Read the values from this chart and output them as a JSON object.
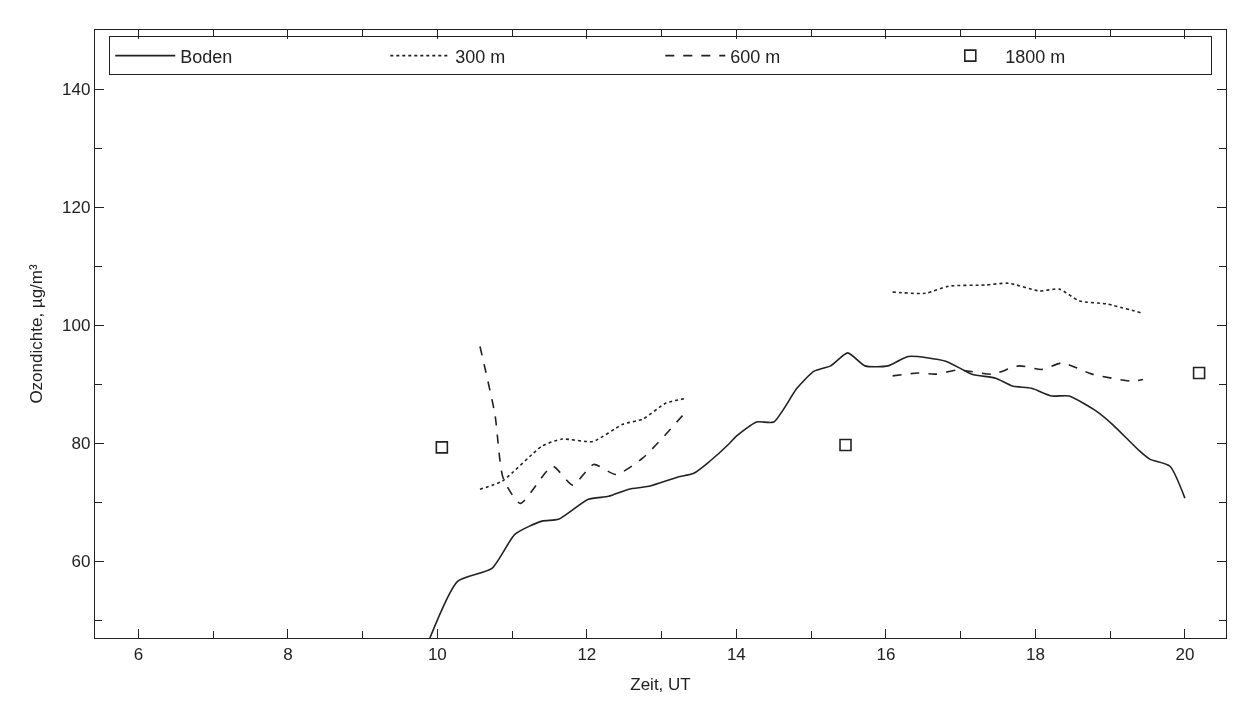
{
  "chart_data": {
    "type": "line",
    "xlabel": "Zeit, UT",
    "ylabel": "Ozondichte, µg/m³",
    "xlim": [
      5.42,
      20.55
    ],
    "ylim": [
      47,
      150
    ],
    "xticks": [
      6,
      {
        "value": 7,
        "label": null
      },
      8,
      {
        "value": 9,
        "label": null
      },
      10,
      {
        "value": 11,
        "label": null
      },
      12,
      {
        "value": 13,
        "label": null
      },
      14,
      {
        "value": 15,
        "label": null
      },
      16,
      {
        "value": 17,
        "label": null
      },
      18,
      {
        "value": 19,
        "label": null
      },
      20
    ],
    "yticks": [
      {
        "value": 50,
        "label": null
      },
      60,
      {
        "value": 70,
        "label": null
      },
      80,
      {
        "value": 90,
        "label": null
      },
      100,
      {
        "value": 110,
        "label": null
      },
      120,
      {
        "value": 130,
        "label": null
      },
      140
    ],
    "legend": "top",
    "series": [
      {
        "name": "Boden",
        "color": "#222222",
        "line_style": "solid",
        "marker": "none",
        "x": [
          9.9,
          10.27,
          10.73,
          11.04,
          11.4,
          11.62,
          12.02,
          12.29,
          12.56,
          12.83,
          13.2,
          13.43,
          13.64,
          13.91,
          14.0,
          14.27,
          14.5,
          14.81,
          15.04,
          15.26,
          15.49,
          15.72,
          16.03,
          16.3,
          16.8,
          17.15,
          17.47,
          17.69,
          17.95,
          18.22,
          18.45,
          18.82,
          19.03,
          19.4,
          19.53,
          19.8,
          20.0
        ],
        "values": [
          47,
          56.6,
          58.8,
          64.6,
          66.8,
          67.1,
          70.5,
          71.0,
          72.2,
          72.7,
          74.2,
          74.9,
          76.9,
          80.0,
          81.2,
          83.6,
          83.6,
          89.3,
          92.2,
          93.1,
          95.3,
          93.1,
          93.1,
          94.7,
          93.9,
          91.7,
          91.0,
          89.7,
          89.3,
          88.0,
          88.0,
          85.4,
          83.2,
          78.6,
          77.3,
          76.1,
          70.7
        ]
      },
      {
        "name": "300 m",
        "color": "#222222",
        "line_style": "dotted",
        "marker": "none",
        "x": [
          10.57,
          10.87,
          11.4,
          11.67,
          12.08,
          12.48,
          12.75,
          13.06,
          13.33,
          null,
          16.09,
          16.53,
          16.84,
          17.33,
          17.64,
          18.05,
          18.32,
          18.59,
          18.95,
          19.44
        ],
        "values": [
          72.2,
          73.6,
          79.5,
          80.7,
          80.3,
          83.2,
          84.1,
          86.8,
          87.6,
          null,
          105.6,
          105.4,
          106.6,
          106.8,
          107.1,
          105.8,
          106.1,
          104.1,
          103.6,
          102.0
        ]
      },
      {
        "name": "600 m",
        "color": "#222222",
        "line_style": "dashed",
        "marker": "none",
        "x": [
          10.57,
          10.77,
          10.88,
          11.11,
          11.54,
          11.81,
          12.09,
          12.39,
          12.75,
          13.33,
          null,
          16.09,
          16.43,
          16.66,
          16.97,
          17.42,
          17.78,
          18.09,
          18.36,
          18.76,
          19.3,
          19.44
        ],
        "values": [
          96.4,
          84.9,
          74.1,
          69.8,
          76.1,
          72.9,
          76.4,
          74.7,
          77.5,
          85.4,
          null,
          91.4,
          91.9,
          91.7,
          92.4,
          91.7,
          93.1,
          92.5,
          93.6,
          91.7,
          90.5,
          90.8
        ]
      },
      {
        "name": "1800 m",
        "type": "scatter",
        "color": "#222222",
        "marker": "square",
        "x": [
          10.06,
          15.46,
          20.19
        ],
        "values": [
          79.3,
          79.7,
          91.9
        ]
      }
    ]
  }
}
